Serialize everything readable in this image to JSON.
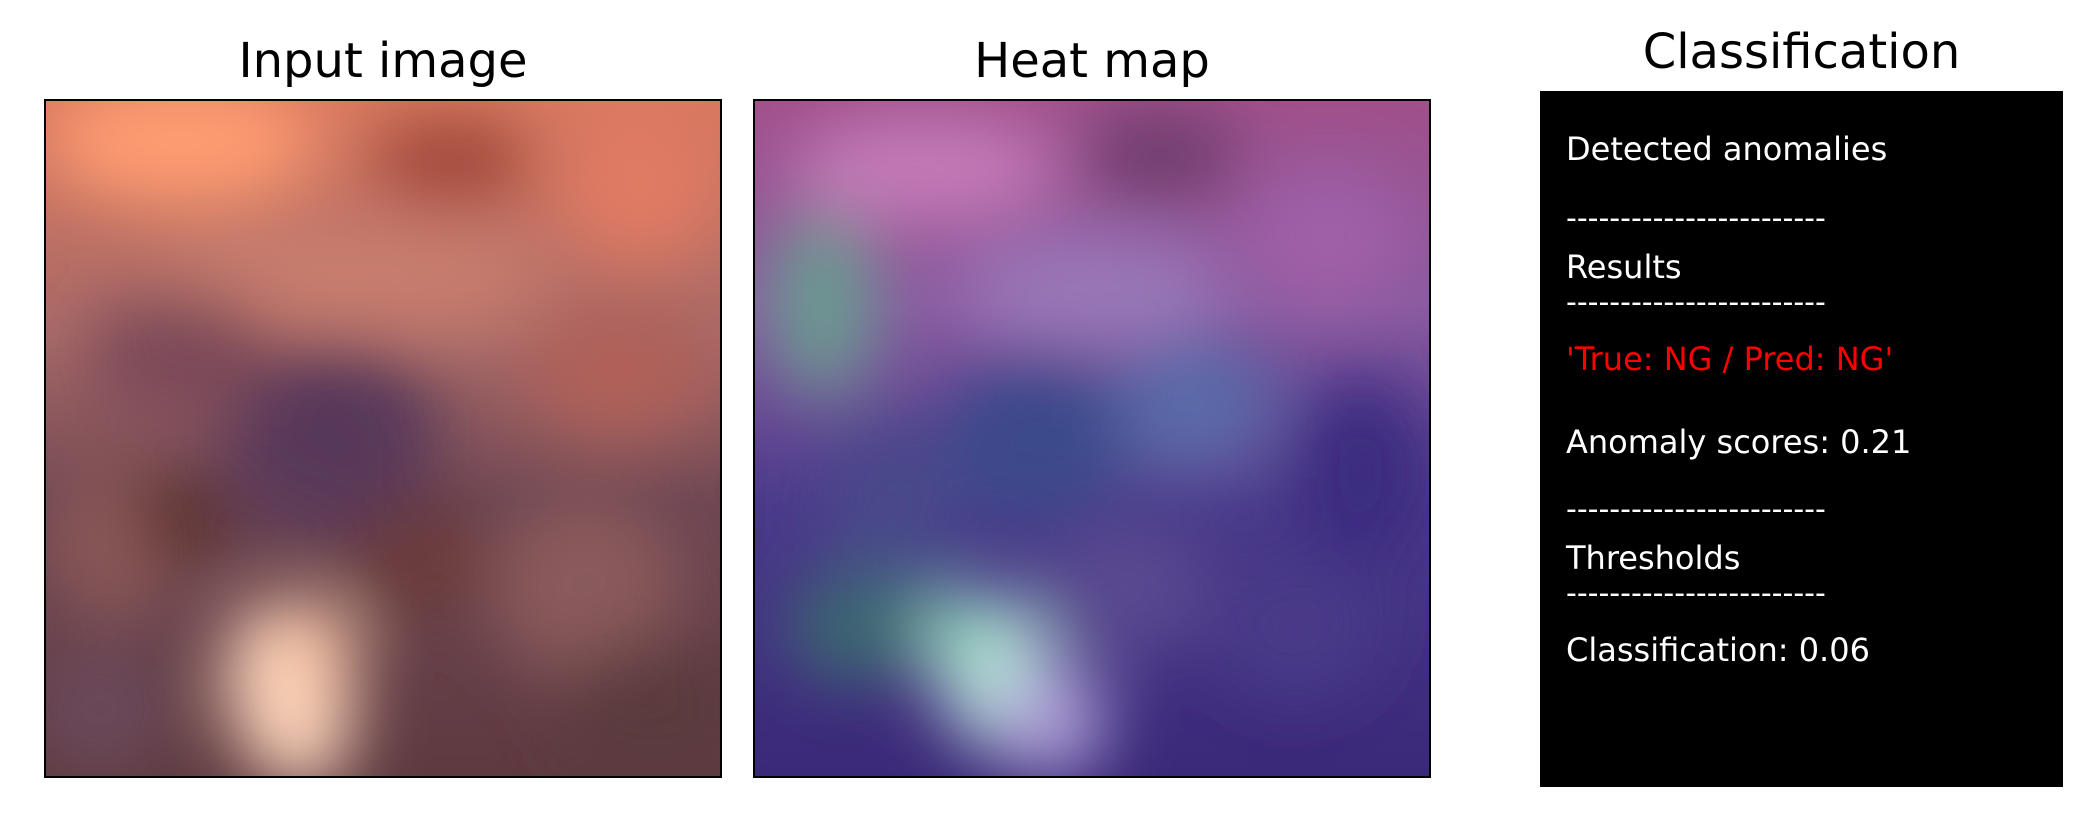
{
  "panels": {
    "input": {
      "title": "Input image"
    },
    "heatmap": {
      "title": "Heat map"
    },
    "classification": {
      "title": "Classification",
      "header": "Detected anomalies",
      "separator": "------------------------",
      "results_label": "Results",
      "result_text": "'True: NG / Pred: NG'",
      "anomaly_score": "Anomaly scores: 0.21",
      "thresholds_label": "Thresholds",
      "classification_threshold": "Classification: 0.06"
    }
  },
  "colors": {
    "result_text": "#ff0000",
    "info_text": "#ffffff",
    "info_background": "#000000"
  }
}
